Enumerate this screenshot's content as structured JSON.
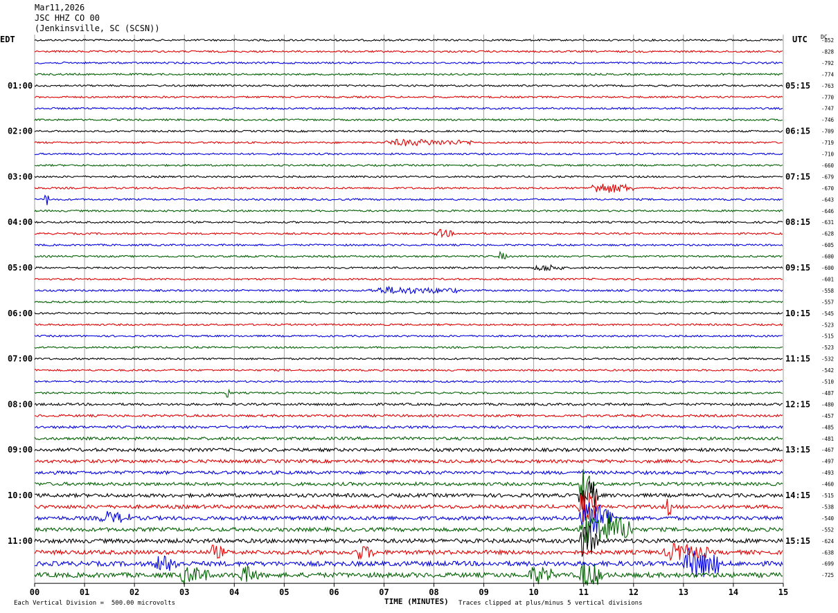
{
  "header": {
    "date": "Mar11,2026",
    "station": "JSC HHZ CO 00",
    "location": "(Jenkinsville, SC (SCSN))"
  },
  "left_tz": "EDT",
  "right_tz": "UTC",
  "dc_label": "DC",
  "footer": {
    "scale_note": "Each Vertical Division =  500.00 microvolts",
    "clip_note": "Traces clipped at plus/minus 5 vertical divisions",
    "xlabel": "TIME (MINUTES)"
  },
  "chart_data": {
    "type": "line",
    "title": "",
    "xlabel": "TIME (MINUTES)",
    "ylabel": "",
    "xlim": [
      0,
      15
    ],
    "x_ticks": [
      "00",
      "01",
      "02",
      "03",
      "04",
      "05",
      "06",
      "07",
      "08",
      "09",
      "10",
      "11",
      "12",
      "13",
      "14",
      "15"
    ],
    "grid": true,
    "trace_colors": [
      "#000000",
      "#e00000",
      "#0000e0",
      "#006000"
    ],
    "left_time_labels": [
      "01:00",
      "02:00",
      "03:00",
      "04:00",
      "05:00",
      "06:00",
      "07:00",
      "08:00",
      "09:00",
      "10:00",
      "11:00"
    ],
    "right_time_labels": [
      "05:15",
      "06:15",
      "07:15",
      "08:15",
      "09:15",
      "10:15",
      "11:15",
      "12:15",
      "13:15",
      "14:15",
      "15:15"
    ],
    "dc_offsets": [
      -852,
      -828,
      -792,
      -774,
      -763,
      -770,
      -747,
      -746,
      -709,
      -719,
      -710,
      -660,
      -679,
      -670,
      -643,
      -646,
      -631,
      -628,
      -605,
      -600,
      -600,
      -601,
      -558,
      -557,
      -545,
      -523,
      -515,
      -523,
      -532,
      -542,
      -510,
      -487,
      -480,
      -457,
      -485,
      -481,
      -467,
      -497,
      -493,
      -460,
      -515,
      -538,
      -540,
      -552,
      -624,
      -638,
      -699,
      -725
    ],
    "row_noise_level": [
      1,
      1,
      1,
      1,
      1,
      1,
      1,
      1,
      1,
      1,
      1,
      1,
      1,
      1,
      1,
      1,
      1,
      1,
      1,
      1,
      1,
      1,
      1,
      1,
      1,
      1,
      1,
      1,
      1,
      1,
      1,
      1,
      1.3,
      1.3,
      1.4,
      1.6,
      1.8,
      1.8,
      1.8,
      1.8,
      2,
      2,
      2.1,
      2.1,
      2.3,
      2.3,
      2.6,
      2.6
    ],
    "events": [
      {
        "row": 9,
        "start_min": 7.0,
        "end_min": 8.8,
        "amp": 0.45
      },
      {
        "row": 13,
        "start_min": 11.1,
        "end_min": 12.0,
        "amp": 0.8
      },
      {
        "row": 14,
        "start_min": 0.2,
        "end_min": 0.28,
        "amp": 1.2
      },
      {
        "row": 17,
        "start_min": 8.0,
        "end_min": 8.4,
        "amp": 0.6
      },
      {
        "row": 19,
        "start_min": 9.3,
        "end_min": 9.45,
        "amp": 0.6
      },
      {
        "row": 20,
        "start_min": 10.0,
        "end_min": 10.6,
        "amp": 0.5
      },
      {
        "row": 22,
        "start_min": 6.7,
        "end_min": 8.5,
        "amp": 0.5
      },
      {
        "row": 31,
        "start_min": 3.8,
        "end_min": 3.9,
        "amp": 1.0
      },
      {
        "row": 39,
        "start_min": 10.9,
        "end_min": 11.2,
        "amp": 3.0
      },
      {
        "row": 40,
        "start_min": 10.9,
        "end_min": 11.3,
        "amp": 3.0
      },
      {
        "row": 41,
        "start_min": 10.9,
        "end_min": 11.3,
        "amp": 3.0
      },
      {
        "row": 41,
        "start_min": 12.65,
        "end_min": 12.75,
        "amp": 2.0
      },
      {
        "row": 42,
        "start_min": 10.9,
        "end_min": 11.6,
        "amp": 3.0
      },
      {
        "row": 42,
        "start_min": 1.3,
        "end_min": 1.9,
        "amp": 0.9
      },
      {
        "row": 43,
        "start_min": 10.9,
        "end_min": 12.0,
        "amp": 3.0
      },
      {
        "row": 44,
        "start_min": 10.9,
        "end_min": 11.3,
        "amp": 3.0
      },
      {
        "row": 45,
        "start_min": 3.5,
        "end_min": 3.8,
        "amp": 1.0
      },
      {
        "row": 45,
        "start_min": 6.4,
        "end_min": 6.8,
        "amp": 1.0
      },
      {
        "row": 45,
        "start_min": 12.6,
        "end_min": 13.5,
        "amp": 1.2
      },
      {
        "row": 46,
        "start_min": 2.4,
        "end_min": 2.9,
        "amp": 1.2
      },
      {
        "row": 46,
        "start_min": 13.0,
        "end_min": 13.7,
        "amp": 2.5
      },
      {
        "row": 47,
        "start_min": 2.9,
        "end_min": 3.5,
        "amp": 1.2
      },
      {
        "row": 47,
        "start_min": 4.1,
        "end_min": 4.5,
        "amp": 1.2
      },
      {
        "row": 47,
        "start_min": 9.9,
        "end_min": 10.4,
        "amp": 1.3
      },
      {
        "row": 47,
        "start_min": 10.9,
        "end_min": 11.4,
        "amp": 2.0
      }
    ]
  }
}
